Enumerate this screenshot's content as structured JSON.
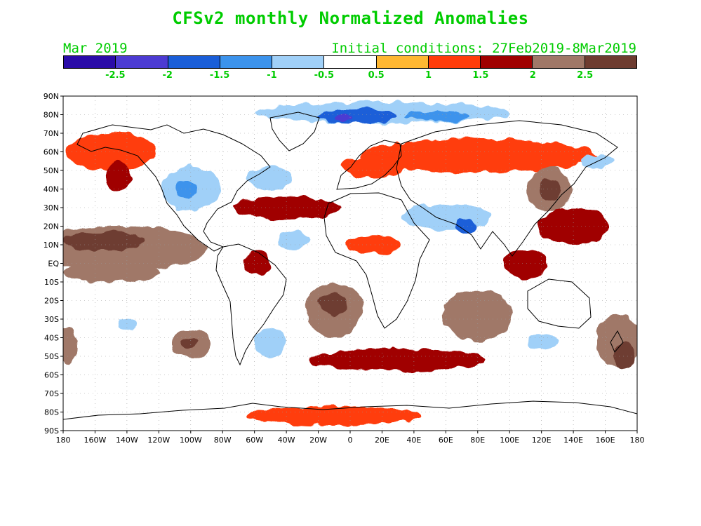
{
  "title": "CFSv2 monthly Normalized Anomalies",
  "month": "Mar 2019",
  "initial_conditions": "Initial conditions: 27Feb2019-8Mar2019",
  "colorbar": {
    "colors": [
      "#2a0ca8",
      "#4c3bd2",
      "#1a5ed8",
      "#3c93ec",
      "#a0d0f8",
      "#ffffff",
      "#ffb732",
      "#ff3c0a",
      "#a00000",
      "#a07868",
      "#6e3c30"
    ],
    "labels": [
      "-2.5",
      "-2",
      "-1.5",
      "-1",
      "-0.5",
      "0.5",
      "1",
      "1.5",
      "2",
      "2.5"
    ]
  },
  "map": {
    "lat_labels": [
      "90N",
      "80N",
      "70N",
      "60N",
      "50N",
      "40N",
      "30N",
      "20N",
      "10N",
      "EQ",
      "10S",
      "20S",
      "30S",
      "40S",
      "50S",
      "60S",
      "70S",
      "80S",
      "90S"
    ],
    "lon_labels": [
      "180",
      "160W",
      "140W",
      "120W",
      "100W",
      "80W",
      "60W",
      "40W",
      "20W",
      "0",
      "20E",
      "40E",
      "60E",
      "80E",
      "100E",
      "120E",
      "140E",
      "160E",
      "180"
    ],
    "features": [
      {
        "name": "arctic-north-blue-band",
        "level": -1,
        "lon": 20,
        "lat": 81,
        "rlon": 80,
        "rlat": 6
      },
      {
        "name": "arctic-strong-negative",
        "level": -2,
        "lon": 5,
        "lat": 79,
        "rlon": 25,
        "rlat": 4
      },
      {
        "name": "arctic-core-negative",
        "level": -2.5,
        "lon": -5,
        "lat": 78,
        "rlon": 5,
        "rlat": 2
      },
      {
        "name": "siberia-negative",
        "level": -1.5,
        "lon": 55,
        "lat": 79,
        "rlon": 20,
        "rlat": 3
      },
      {
        "name": "eurasia-north-warm-band",
        "level": 1,
        "lon": 80,
        "lat": 58,
        "rlon": 75,
        "rlat": 9
      },
      {
        "name": "europe-warm",
        "level": 1,
        "lon": 15,
        "lat": 52,
        "rlon": 20,
        "rlat": 6
      },
      {
        "name": "north-america-cold",
        "level": -1,
        "lon": -100,
        "lat": 40,
        "rlon": 18,
        "rlat": 12
      },
      {
        "name": "north-america-cold-core",
        "level": -1.5,
        "lon": -103,
        "lat": 40,
        "rlon": 6,
        "rlat": 5
      },
      {
        "name": "alaska-warm",
        "level": 1,
        "lon": -150,
        "lat": 60,
        "rlon": 28,
        "rlat": 10
      },
      {
        "name": "gulf-alaska-hot",
        "level": 1.5,
        "lon": -145,
        "lat": 47,
        "rlon": 8,
        "rlat": 8
      },
      {
        "name": "labrador-cold",
        "level": -1,
        "lon": -50,
        "lat": 46,
        "rlon": 14,
        "rlat": 6
      },
      {
        "name": "atlantic-warm-band",
        "level": 1.5,
        "lon": -40,
        "lat": 30,
        "rlon": 35,
        "rlat": 6
      },
      {
        "name": "east-pacific-hot-tongue",
        "level": 2,
        "lon": -145,
        "lat": 8,
        "rlon": 55,
        "rlat": 12
      },
      {
        "name": "east-pacific-extreme",
        "level": 2.5,
        "lon": -155,
        "lat": 12,
        "rlon": 25,
        "rlat": 5
      },
      {
        "name": "equatorial-pacific-hot",
        "level": 2,
        "lon": -150,
        "lat": -5,
        "rlon": 30,
        "rlat": 5
      },
      {
        "name": "north-africa-warm",
        "level": 1,
        "lon": 15,
        "lat": 10,
        "rlon": 18,
        "rlat": 5
      },
      {
        "name": "tropical-atlantic-cold",
        "level": -1,
        "lon": -35,
        "lat": 12,
        "rlon": 10,
        "rlat": 5
      },
      {
        "name": "south-atlantic-hot",
        "level": 2,
        "lon": -10,
        "lat": -25,
        "rlon": 18,
        "rlat": 15
      },
      {
        "name": "south-atlantic-extreme",
        "level": 2.5,
        "lon": -10,
        "lat": -22,
        "rlon": 9,
        "rlat": 6
      },
      {
        "name": "brazil-warm",
        "level": 1.5,
        "lon": -58,
        "lat": 0,
        "rlon": 9,
        "rlat": 7
      },
      {
        "name": "middle-east-cold",
        "level": -1,
        "lon": 60,
        "lat": 25,
        "rlon": 28,
        "rlat": 7
      },
      {
        "name": "india-cold-core",
        "level": -2,
        "lon": 72,
        "lat": 20,
        "rlon": 7,
        "rlat": 4
      },
      {
        "name": "east-asia-hot",
        "level": 2,
        "lon": 125,
        "lat": 40,
        "rlon": 14,
        "rlat": 12
      },
      {
        "name": "east-asia-extreme",
        "level": 2.5,
        "lon": 125,
        "lat": 40,
        "rlon": 6,
        "rlat": 6
      },
      {
        "name": "west-pacific-hot",
        "level": 1.5,
        "lon": 140,
        "lat": 20,
        "rlon": 22,
        "rlat": 10
      },
      {
        "name": "kamchatka-cold",
        "level": -1,
        "lon": 155,
        "lat": 55,
        "rlon": 10,
        "rlat": 4
      },
      {
        "name": "indian-ocean-hot",
        "level": 2,
        "lon": 80,
        "lat": -28,
        "rlon": 22,
        "rlat": 14
      },
      {
        "name": "maritime-continent-hot",
        "level": 1.5,
        "lon": 110,
        "lat": 0,
        "rlon": 14,
        "rlat": 8
      },
      {
        "name": "australia-south-cold",
        "level": -1,
        "lon": 120,
        "lat": -42,
        "rlon": 10,
        "rlat": 4
      },
      {
        "name": "southwest-pacific-hot",
        "level": 2,
        "lon": 168,
        "lat": -42,
        "rlon": 14,
        "rlat": 14
      },
      {
        "name": "southwest-pacific-extreme",
        "level": 2.5,
        "lon": 172,
        "lat": -50,
        "rlon": 7,
        "rlat": 7
      },
      {
        "name": "south-pacific-hot-blob",
        "level": 2,
        "lon": -100,
        "lat": -43,
        "rlon": 12,
        "rlat": 8
      },
      {
        "name": "south-pacific-extreme-blob",
        "level": 2.5,
        "lon": -100,
        "lat": -43,
        "rlon": 5,
        "rlat": 3
      },
      {
        "name": "far-south-pacific-hot",
        "level": 2,
        "lon": -178,
        "lat": -45,
        "rlon": 6,
        "rlat": 10
      },
      {
        "name": "south-pacific-cold",
        "level": -1,
        "lon": -140,
        "lat": -33,
        "rlon": 6,
        "rlat": 4
      },
      {
        "name": "southern-ocean-hot-band",
        "level": 1.5,
        "lon": 30,
        "lat": -52,
        "rlon": 55,
        "rlat": 6
      },
      {
        "name": "argentina-cold",
        "level": -1,
        "lon": -50,
        "lat": -42,
        "rlon": 10,
        "rlat": 8
      },
      {
        "name": "antarctic-warm",
        "level": 1,
        "lon": -10,
        "lat": -82,
        "rlon": 55,
        "rlat": 5
      }
    ]
  }
}
